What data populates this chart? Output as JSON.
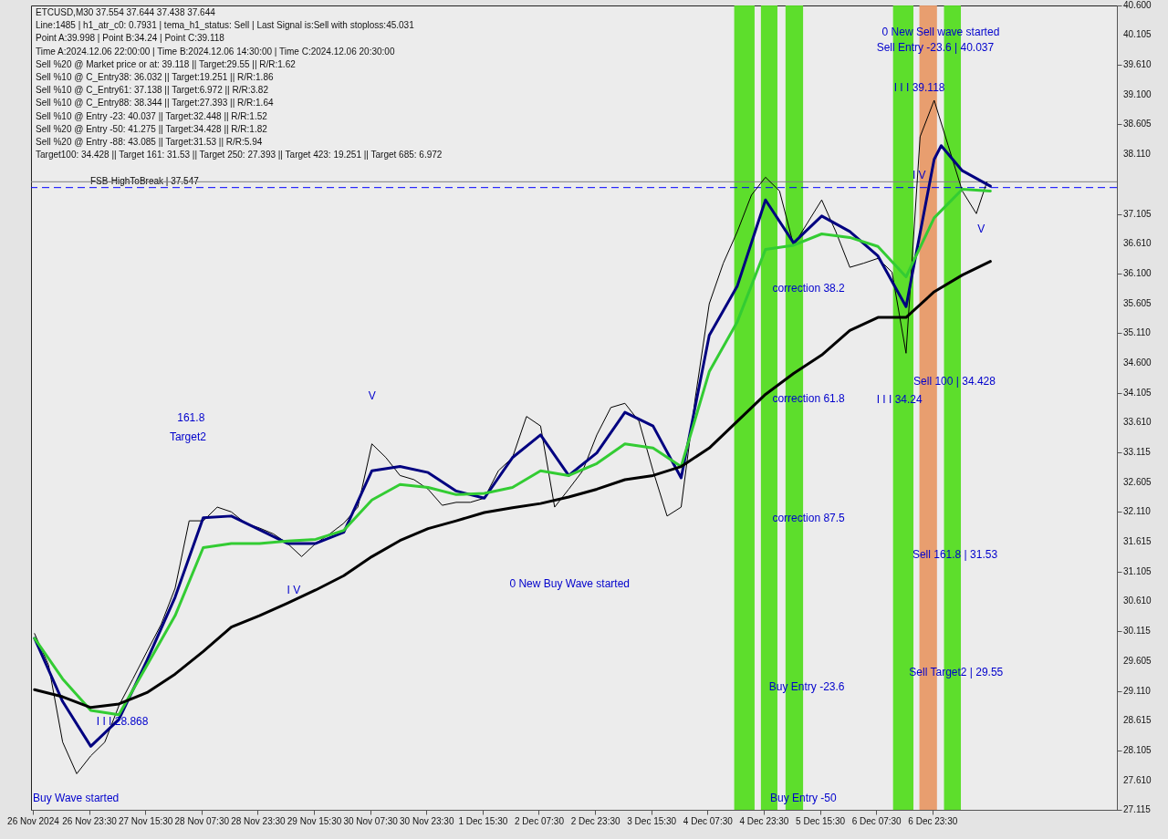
{
  "chart_data": {
    "type": "line",
    "title": "ETCUSD,M30 37.554 37.644 37.438 37.644",
    "x": [
      "2024-11-26T08:00",
      "2024-11-26T12:00",
      "2024-11-26T16:00",
      "2024-11-26T20:00",
      "2024-11-27T00:00",
      "2024-11-27T04:00",
      "2024-11-27T08:00",
      "2024-11-27T12:00",
      "2024-11-27T16:00",
      "2024-11-27T20:00",
      "2024-11-28T00:00",
      "2024-11-28T04:00",
      "2024-11-28T08:00",
      "2024-11-28T12:00",
      "2024-11-28T16:00",
      "2024-11-28T20:00",
      "2024-11-29T00:00",
      "2024-11-29T04:00",
      "2024-11-29T08:00",
      "2024-11-29T12:00",
      "2024-11-29T16:00",
      "2024-11-29T20:00",
      "2024-11-30T00:00",
      "2024-11-30T04:00",
      "2024-11-30T08:00",
      "2024-11-30T12:00",
      "2024-11-30T16:00",
      "2024-11-30T20:00",
      "2024-12-01T00:00",
      "2024-12-01T04:00",
      "2024-12-01T08:00",
      "2024-12-01T12:00",
      "2024-12-01T16:00",
      "2024-12-01T20:00",
      "2024-12-02T00:00",
      "2024-12-02T04:00",
      "2024-12-02T08:00",
      "2024-12-02T12:00",
      "2024-12-02T16:00",
      "2024-12-02T20:00",
      "2024-12-03T00:00",
      "2024-12-03T04:00",
      "2024-12-03T08:00",
      "2024-12-03T12:00",
      "2024-12-03T16:00",
      "2024-12-03T20:00",
      "2024-12-04T00:00",
      "2024-12-04T04:00",
      "2024-12-04T08:00",
      "2024-12-04T12:00",
      "2024-12-04T16:00",
      "2024-12-04T20:00",
      "2024-12-05T00:00",
      "2024-12-05T04:00",
      "2024-12-05T08:00",
      "2024-12-05T12:00",
      "2024-12-05T16:00",
      "2024-12-05T20:00",
      "2024-12-06T00:00",
      "2024-12-06T04:00",
      "2024-12-06T08:00",
      "2024-12-06T12:00",
      "2024-12-06T16:00",
      "2024-12-06T20:00",
      "2024-12-07T00:00",
      "2024-12-07T04:00",
      "2024-12-07T08:00",
      "2024-12-07T12:00",
      "2024-12-07T15:00"
    ],
    "series": [
      {
        "color": "#000000",
        "values": [
          30.07,
          29.54,
          28.25,
          27.72,
          28.02,
          28.25,
          28.86,
          29.31,
          29.77,
          30.22,
          30.83,
          31.96,
          31.96,
          32.19,
          32.11,
          31.92,
          31.84,
          31.74,
          31.58,
          31.36,
          31.58,
          31.74,
          31.92,
          32.19,
          33.25,
          33.02,
          32.72,
          32.65,
          32.49,
          32.22,
          32.27,
          32.27,
          32.34,
          32.8,
          33.02,
          33.71,
          33.55,
          32.19,
          32.49,
          32.8,
          33.4,
          33.86,
          33.93,
          33.63,
          32.8,
          32.04,
          32.19,
          34.01,
          35.6,
          36.28,
          36.81,
          37.42,
          37.72,
          37.49,
          36.58,
          36.96,
          37.34,
          36.81,
          36.21,
          36.28,
          36.36,
          36.13,
          34.77,
          38.4,
          39.01,
          38.25,
          37.49,
          37.11,
          37.64
        ]
      },
      {
        "color": "#000080",
        "x": [
          "2024-11-26T08:00",
          "2024-11-26T16:00",
          "2024-11-27T00:00",
          "2024-11-27T08:00",
          "2024-11-27T16:00",
          "2024-11-28T00:00",
          "2024-11-28T08:00",
          "2024-11-28T16:00",
          "2024-11-29T00:00",
          "2024-11-29T08:00",
          "2024-11-29T16:00",
          "2024-11-30T00:00",
          "2024-11-30T08:00",
          "2024-11-30T16:00",
          "2024-12-01T00:00",
          "2024-12-01T08:00",
          "2024-12-01T16:00",
          "2024-12-02T00:00",
          "2024-12-02T08:00",
          "2024-12-02T16:00",
          "2024-12-03T00:00",
          "2024-12-03T08:00",
          "2024-12-03T16:00",
          "2024-12-04T00:00",
          "2024-12-04T08:00",
          "2024-12-04T16:00",
          "2024-12-05T00:00",
          "2024-12-05T08:00",
          "2024-12-05T16:00",
          "2024-12-06T00:00",
          "2024-12-06T08:00",
          "2024-12-06T16:00",
          "2024-12-07T00:00",
          "2024-12-07T02:00",
          "2024-12-07T08:00",
          "2024-12-07T16:00"
        ],
        "values": [
          29.99,
          28.93,
          28.18,
          28.63,
          29.62,
          30.68,
          32.01,
          32.04,
          31.81,
          31.58,
          31.58,
          31.77,
          32.8,
          32.87,
          32.77,
          32.46,
          32.34,
          33.02,
          33.4,
          32.72,
          33.1,
          33.78,
          33.55,
          32.68,
          35.07,
          35.9,
          37.34,
          36.62,
          37.07,
          36.81,
          36.4,
          35.55,
          38.02,
          38.25,
          37.83,
          37.57
        ]
      },
      {
        "color": "#33cc33",
        "x": [
          "2024-11-26T08:00",
          "2024-11-26T16:00",
          "2024-11-27T00:00",
          "2024-11-27T08:00",
          "2024-11-27T16:00",
          "2024-11-28T00:00",
          "2024-11-28T08:00",
          "2024-11-28T16:00",
          "2024-11-29T00:00",
          "2024-11-29T08:00",
          "2024-11-29T16:00",
          "2024-11-30T00:00",
          "2024-11-30T08:00",
          "2024-11-30T16:00",
          "2024-12-01T00:00",
          "2024-12-01T08:00",
          "2024-12-01T16:00",
          "2024-12-02T00:00",
          "2024-12-02T08:00",
          "2024-12-02T16:00",
          "2024-12-03T00:00",
          "2024-12-03T08:00",
          "2024-12-03T16:00",
          "2024-12-04T00:00",
          "2024-12-04T08:00",
          "2024-12-04T16:00",
          "2024-12-05T00:00",
          "2024-12-05T08:00",
          "2024-12-05T16:00",
          "2024-12-06T00:00",
          "2024-12-06T08:00",
          "2024-12-06T16:00",
          "2024-12-07T00:00",
          "2024-12-07T08:00",
          "2024-12-07T16:00"
        ],
        "values": [
          29.99,
          29.31,
          28.78,
          28.71,
          29.54,
          30.37,
          31.51,
          31.58,
          31.58,
          31.62,
          31.65,
          31.8,
          32.31,
          32.57,
          32.52,
          32.4,
          32.42,
          32.52,
          32.8,
          32.72,
          32.92,
          33.25,
          33.18,
          32.87,
          34.46,
          35.3,
          36.51,
          36.58,
          36.77,
          36.71,
          36.56,
          36.05,
          37.04,
          37.52,
          37.49
        ]
      },
      {
        "color": "#000000",
        "x": [
          "2024-11-26T08:00",
          "2024-11-26T16:00",
          "2024-11-27T00:00",
          "2024-11-27T08:00",
          "2024-11-27T16:00",
          "2024-11-28T00:00",
          "2024-11-28T08:00",
          "2024-11-28T16:00",
          "2024-11-29T00:00",
          "2024-11-29T08:00",
          "2024-11-29T16:00",
          "2024-11-30T00:00",
          "2024-11-30T08:00",
          "2024-11-30T16:00",
          "2024-12-01T00:00",
          "2024-12-01T08:00",
          "2024-12-01T16:00",
          "2024-12-02T00:00",
          "2024-12-02T08:00",
          "2024-12-02T16:00",
          "2024-12-03T00:00",
          "2024-12-03T08:00",
          "2024-12-03T16:00",
          "2024-12-04T00:00",
          "2024-12-04T08:00",
          "2024-12-04T16:00",
          "2024-12-05T00:00",
          "2024-12-05T08:00",
          "2024-12-05T16:00",
          "2024-12-06T00:00",
          "2024-12-06T08:00",
          "2024-12-06T16:00",
          "2024-12-07T00:00",
          "2024-12-07T08:00",
          "2024-12-07T16:00"
        ],
        "values": [
          29.13,
          29.01,
          28.83,
          28.89,
          29.08,
          29.39,
          29.77,
          30.18,
          30.37,
          30.58,
          30.8,
          31.04,
          31.36,
          31.63,
          31.83,
          31.96,
          32.1,
          32.18,
          32.25,
          32.36,
          32.49,
          32.65,
          32.72,
          32.87,
          33.18,
          33.63,
          34.08,
          34.43,
          34.74,
          35.15,
          35.37,
          35.37,
          35.8,
          36.08,
          36.31
        ]
      }
    ],
    "xlim": [
      "2024-11-26T07:00",
      "2024-12-09T04:00"
    ],
    "xticks": [
      {
        "value": "2024-11-26T07:30",
        "label": "26 Nov 2024"
      },
      {
        "value": "2024-11-26T23:30",
        "label": "26 Nov 23:30"
      },
      {
        "value": "2024-11-27T15:30",
        "label": "27 Nov 15:30"
      },
      {
        "value": "2024-11-28T07:30",
        "label": "28 Nov 07:30"
      },
      {
        "value": "2024-11-28T23:30",
        "label": "28 Nov 23:30"
      },
      {
        "value": "2024-11-29T15:30",
        "label": "29 Nov 15:30"
      },
      {
        "value": "2024-11-30T07:30",
        "label": "30 Nov 07:30"
      },
      {
        "value": "2024-11-30T23:30",
        "label": "30 Nov 23:30"
      },
      {
        "value": "2024-12-01T15:30",
        "label": "1 Dec 15:30"
      },
      {
        "value": "2024-12-02T07:30",
        "label": "2 Dec 07:30"
      },
      {
        "value": "2024-12-02T23:30",
        "label": "2 Dec 23:30"
      },
      {
        "value": "2024-12-03T15:30",
        "label": "3 Dec 15:30"
      },
      {
        "value": "2024-12-04T07:30",
        "label": "4 Dec 07:30"
      },
      {
        "value": "2024-12-04T23:30",
        "label": "4 Dec 23:30"
      },
      {
        "value": "2024-12-05T15:30",
        "label": "5 Dec 15:30"
      },
      {
        "value": "2024-12-06T07:30",
        "label": "6 Dec 07:30"
      },
      {
        "value": "2024-12-06T23:30",
        "label": "6 Dec 23:30"
      }
    ],
    "ylim": [
      27.115,
      40.6
    ],
    "yticks": [
      27.115,
      {
        "value": 27.61,
        "label": "27.610"
      },
      28.105,
      28.615,
      {
        "value": 29.11,
        "label": "29.110"
      },
      29.605,
      30.115,
      {
        "value": 30.61,
        "label": "30.610"
      },
      31.105,
      31.615,
      {
        "value": 32.11,
        "label": "32.110"
      },
      32.605,
      33.115,
      {
        "value": 33.61,
        "label": "33.610"
      },
      34.105,
      {
        "value": 34.6,
        "label": "34.600"
      },
      {
        "value": 35.11,
        "label": "35.110"
      },
      35.605,
      {
        "value": 36.1,
        "label": "36.100"
      },
      {
        "value": 36.61,
        "label": "36.610"
      },
      37.105,
      {
        "value": 38.11,
        "label": "38.110"
      },
      38.605,
      {
        "value": 39.1,
        "label": "39.100"
      },
      {
        "value": 39.61,
        "label": "39.610"
      },
      40.105,
      {
        "value": 40.6,
        "label": "40.600"
      }
    ],
    "grid": false,
    "ref_lines": [
      {
        "axis": "y",
        "value": 37.547,
        "label": "FSB-HighToBreak | 37.547",
        "color": "#0000ff",
        "line_style": "dashed"
      },
      {
        "axis": "y",
        "value": 37.644,
        "color": "#808080",
        "line_style": "solid"
      }
    ],
    "bands": [
      {
        "axis": "x",
        "from": "2024-12-04T15:06",
        "to": "2024-12-04T20:54",
        "color": "#55dd22"
      },
      {
        "axis": "x",
        "from": "2024-12-04T22:42",
        "to": "2024-12-05T03:24",
        "color": "#55dd22"
      },
      {
        "axis": "x",
        "from": "2024-12-05T05:42",
        "to": "2024-12-05T10:42",
        "color": "#55dd22"
      },
      {
        "axis": "x",
        "from": "2024-12-06T12:18",
        "to": "2024-12-06T18:06",
        "color": "#55dd22"
      },
      {
        "axis": "x",
        "from": "2024-12-06T19:48",
        "to": "2024-12-07T00:48",
        "color": "#e89a68"
      },
      {
        "axis": "x",
        "from": "2024-12-07T02:48",
        "to": "2024-12-07T07:36",
        "color": "#55dd22"
      }
    ],
    "annotations": [
      "Line:1485 | h1_atr_c0: 0.7931 | tema_h1_status: Sell | Last Signal is:Sell with stoploss:45.031",
      "Point A:39.998 | Point B:34.24 | Point C:39.118",
      "Time A:2024.12.06 22:00:00 | Time B:2024.12.06 14:30:00 | Time C:2024.12.06 20:30:00",
      "Sell %20 @ Market price or at: 39.118 || Target:29.55 || R/R:1.62",
      "Sell %10 @ C_Entry38: 36.032 || Target:19.251 || R/R:1.86",
      "Sell %10 @ C_Entry61: 37.138 || Target:6.972 || R/R:3.82",
      "Sell %10 @ C_Entry88: 38.344 || Target:27.393 || R/R:1.64",
      "Sell %10 @ Entry -23: 40.037 || Target:32.448 || R/R:1.52",
      "Sell %20 @ Entry -50: 41.275 || Target:34.428 || R/R:1.82",
      "Sell %20 @ Entry -88: 43.085 || Target:31.53 || R/R:5.94",
      "Target100: 34.428 || Target 161: 31.53 || Target 250: 27.393 || Target 423: 19.251 || Target 685: 6.972",
      "Buy Wave started",
      "I I I 28.868",
      "161.8",
      "Target2",
      "I V",
      "V",
      "0 New Buy Wave started",
      "correction 38.2",
      "correction 61.8",
      "correction 87.5",
      "Buy Entry -23.6",
      "Buy Entry -50",
      "0 New Sell wave started",
      "Sell Entry -23.6 | 40.037",
      "I I I 39.118",
      "I V",
      "I I I 34.24",
      "Sell 100 | 34.428",
      "Sell 161.8 | 31.53",
      "Sell Target2 | 29.55",
      "V"
    ]
  }
}
